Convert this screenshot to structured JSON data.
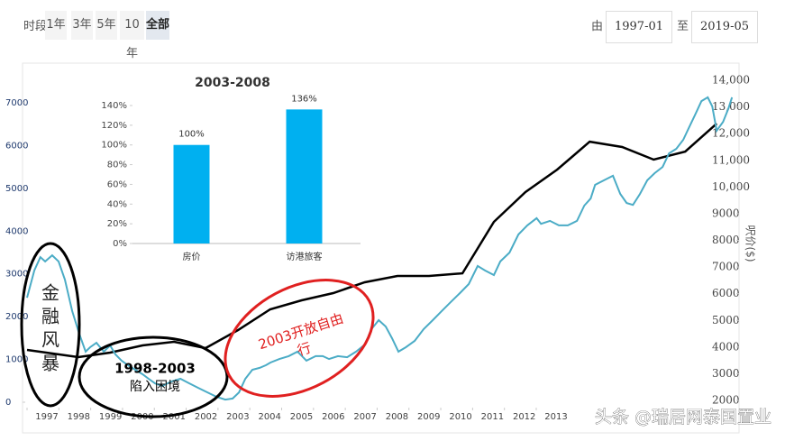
{
  "toolbar": {
    "period_label": "时段",
    "periods": [
      "1年",
      "3年",
      "5年",
      "10年",
      "全部"
    ],
    "from_label": "由",
    "from": "1997-01",
    "to_label": "至",
    "to": "2019-05"
  },
  "chart_data": [
    {
      "type": "line",
      "grid": false,
      "xlim": [
        1997,
        2019.4
      ],
      "xticks": [
        1997,
        1998,
        1999,
        2000,
        2001,
        2002,
        2003,
        2004,
        2005,
        2006,
        2007,
        2008,
        2009,
        2010,
        2011,
        2012,
        2013
      ],
      "ylim": [
        0,
        7000
      ],
      "yticks": [
        0,
        1000,
        2000,
        3000,
        4000,
        5000,
        6000,
        7000
      ],
      "y2lim": [
        2000,
        14000
      ],
      "y2ticks": [
        2000,
        3000,
        4000,
        5000,
        6000,
        7000,
        8000,
        9000,
        {
          "value": 10000,
          "label": "10,000"
        },
        {
          "value": 11000,
          "label": "11,000"
        },
        {
          "value": 12000,
          "label": "12,000"
        },
        {
          "value": 13000,
          "label": "13,000"
        },
        {
          "value": 14000,
          "label": "14,000"
        }
      ],
      "y2label": "呎价($)",
      "series": [
        {
          "color": "#000000",
          "axis": "y",
          "x": [
            1997.0,
            1998.61,
            1999.61,
            2000.63,
            2001.62,
            2002.61,
            2003.63,
            2004.64,
            2005.63,
            2006.62,
            2007.61,
            2008.64,
            2009.63,
            2010.68,
            2011.67,
            2012.66,
            2013.66,
            2014.68,
            2015.7,
            2016.69,
            2017.68,
            2018.67
          ],
          "values": [
            1223,
            1054,
            1160,
            1328,
            1412,
            1265,
            1686,
            2171,
            2382,
            2551,
            2804,
            2951,
            2951,
            3014,
            4216,
            4912,
            5439,
            6092,
            5966,
            5671,
            5860,
            6514
          ]
        },
        {
          "color": "#4bacc6",
          "axis": "y2",
          "x": [
            1997.0,
            1997.23,
            1997.42,
            1997.57,
            1997.79,
            1997.99,
            1998.19,
            1998.42,
            1998.64,
            1998.84,
            1998.98,
            1999.18,
            1999.41,
            1999.61,
            1999.78,
            1999.97,
            2000.17,
            2000.4,
            2000.63,
            2000.82,
            2001.02,
            2001.25,
            2001.53,
            2001.82,
            2002.1,
            2002.38,
            2002.67,
            2002.95,
            2003.23,
            2003.46,
            2003.66,
            2003.86,
            2004.08,
            2004.31,
            2004.51,
            2004.65,
            2004.93,
            2005.22,
            2005.5,
            2005.78,
            2006.07,
            2006.29,
            2006.49,
            2006.77,
            2007.06,
            2007.34,
            2007.62,
            2007.82,
            2008.05,
            2008.27,
            2008.47,
            2008.67,
            2008.9,
            2009.18,
            2009.46,
            2009.75,
            2010.03,
            2010.31,
            2010.6,
            2010.88,
            2011.16,
            2011.39,
            2011.67,
            2011.87,
            2012.16,
            2012.44,
            2012.72,
            2013.01,
            2013.15,
            2013.43,
            2013.71,
            2013.99,
            2014.28,
            2014.51,
            2014.71,
            2014.85,
            2015.13,
            2015.41,
            2015.64,
            2015.84,
            2016.04,
            2016.26,
            2016.49,
            2016.72,
            2016.97,
            2017.17,
            2017.4,
            2017.62,
            2017.82,
            2018.02,
            2018.19,
            2018.39,
            2018.53,
            2018.67,
            2018.87,
            2019.04,
            2019.15
          ],
          "values": [
            5850,
            6870,
            7370,
            7210,
            7440,
            7210,
            6530,
            5350,
            4500,
            3830,
            3990,
            4160,
            3830,
            4060,
            3720,
            3490,
            3320,
            3150,
            2980,
            2810,
            2640,
            2540,
            2710,
            2810,
            2640,
            2470,
            2300,
            2140,
            2030,
            2070,
            2300,
            2810,
            3150,
            3220,
            3320,
            3420,
            3550,
            3660,
            3830,
            3490,
            3660,
            3660,
            3550,
            3660,
            3620,
            3830,
            4100,
            4670,
            5010,
            4770,
            4330,
            3830,
            3990,
            4230,
            4670,
            5010,
            5350,
            5680,
            6020,
            6360,
            7040,
            6870,
            6700,
            7210,
            7540,
            8220,
            8560,
            8830,
            8620,
            8730,
            8560,
            8560,
            8730,
            9300,
            9570,
            10080,
            10250,
            10420,
            9740,
            9400,
            9330,
            9740,
            10250,
            10520,
            10750,
            11260,
            11430,
            11770,
            12280,
            12780,
            13220,
            13360,
            13020,
            12110,
            12440,
            12950,
            13360
          ]
        }
      ],
      "annotations": [
        {
          "lines": [
            "金",
            "融",
            "风",
            "暴"
          ]
        },
        {
          "lines": [
            "1998-2003",
            "陷入困境"
          ]
        },
        {
          "lines": [
            "2003开放自由",
            "行"
          ]
        }
      ]
    },
    {
      "type": "bar",
      "title": "2003-2008",
      "categories": [
        "房价",
        "访港旅客"
      ],
      "values": [
        100,
        136
      ],
      "value_labels": [
        "100%",
        "136%"
      ],
      "color": "#00b0f0",
      "ylim": [
        0,
        140
      ],
      "yticks": [
        {
          "value": 0,
          "label": "0%"
        },
        {
          "value": 20,
          "label": "20%"
        },
        {
          "value": 40,
          "label": "40%"
        },
        {
          "value": 60,
          "label": "60%"
        },
        {
          "value": 80,
          "label": "80%"
        },
        {
          "value": 100,
          "label": "100%"
        },
        {
          "value": 120,
          "label": "120%"
        },
        {
          "value": 140,
          "label": "140%"
        }
      ]
    }
  ],
  "watermark": "头条 @瑞居网泰国置业"
}
